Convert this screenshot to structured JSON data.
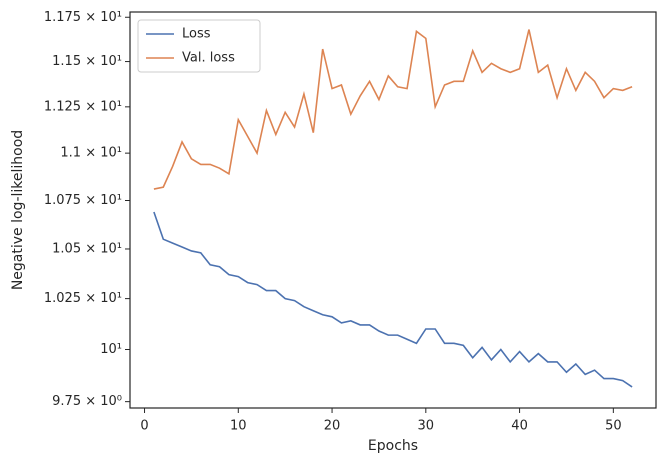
{
  "chart_data": {
    "type": "line",
    "xlabel": "Epochs",
    "ylabel": "Negative log-likelihood",
    "x": [
      1,
      2,
      3,
      4,
      5,
      6,
      7,
      8,
      9,
      10,
      11,
      12,
      13,
      14,
      15,
      16,
      17,
      18,
      19,
      20,
      21,
      22,
      23,
      24,
      25,
      26,
      27,
      28,
      29,
      30,
      31,
      32,
      33,
      34,
      35,
      36,
      37,
      38,
      39,
      40,
      41,
      42,
      43,
      44,
      45,
      46,
      47,
      48,
      49,
      50,
      51,
      52
    ],
    "series": [
      {
        "name": "Loss",
        "color": "#4c72b0",
        "values": [
          10.69,
          10.55,
          10.53,
          10.51,
          10.49,
          10.48,
          10.42,
          10.41,
          10.37,
          10.36,
          10.33,
          10.32,
          10.29,
          10.29,
          10.25,
          10.24,
          10.21,
          10.19,
          10.17,
          10.16,
          10.13,
          10.14,
          10.12,
          10.12,
          10.09,
          10.07,
          10.07,
          10.05,
          10.03,
          10.1,
          10.1,
          10.03,
          10.03,
          10.02,
          9.96,
          10.01,
          9.95,
          10.0,
          9.94,
          9.99,
          9.94,
          9.98,
          9.94,
          9.94,
          9.89,
          9.93,
          9.88,
          9.9,
          9.86,
          9.86,
          9.85,
          9.82
        ]
      },
      {
        "name": "Val. loss",
        "color": "#dd8452",
        "values": [
          10.81,
          10.82,
          10.93,
          11.06,
          10.97,
          10.94,
          10.94,
          10.92,
          10.89,
          11.18,
          11.09,
          11.0,
          11.23,
          11.1,
          11.22,
          11.14,
          11.32,
          11.11,
          11.57,
          11.35,
          11.37,
          11.21,
          11.31,
          11.39,
          11.29,
          11.42,
          11.36,
          11.35,
          11.67,
          11.63,
          11.25,
          11.37,
          11.39,
          11.39,
          11.56,
          11.44,
          11.49,
          11.46,
          11.44,
          11.46,
          11.68,
          11.44,
          11.48,
          11.3,
          11.46,
          11.34,
          11.44,
          11.39,
          11.3,
          11.35,
          11.34,
          11.36
        ]
      }
    ],
    "xlim": [
      -1.55,
      54.55
    ],
    "xticks": [
      0,
      10,
      20,
      30,
      40,
      50
    ],
    "ylim": [
      9.72,
      11.78
    ],
    "ylog": true,
    "yticks": [
      {
        "value": 9.75,
        "label": "9.75 × 10⁰"
      },
      {
        "value": 10,
        "label": "10¹"
      },
      {
        "value": 10.25,
        "label": "1.025 × 10¹"
      },
      {
        "value": 10.5,
        "label": "1.05 × 10¹"
      },
      {
        "value": 10.75,
        "label": "1.075 × 10¹"
      },
      {
        "value": 11,
        "label": "1.1 × 10¹"
      },
      {
        "value": 11.25,
        "label": "1.125 × 10¹"
      },
      {
        "value": 11.5,
        "label": "1.15 × 10¹"
      },
      {
        "value": 11.75,
        "label": "1.175 × 10¹"
      }
    ],
    "legend": "upper left"
  }
}
